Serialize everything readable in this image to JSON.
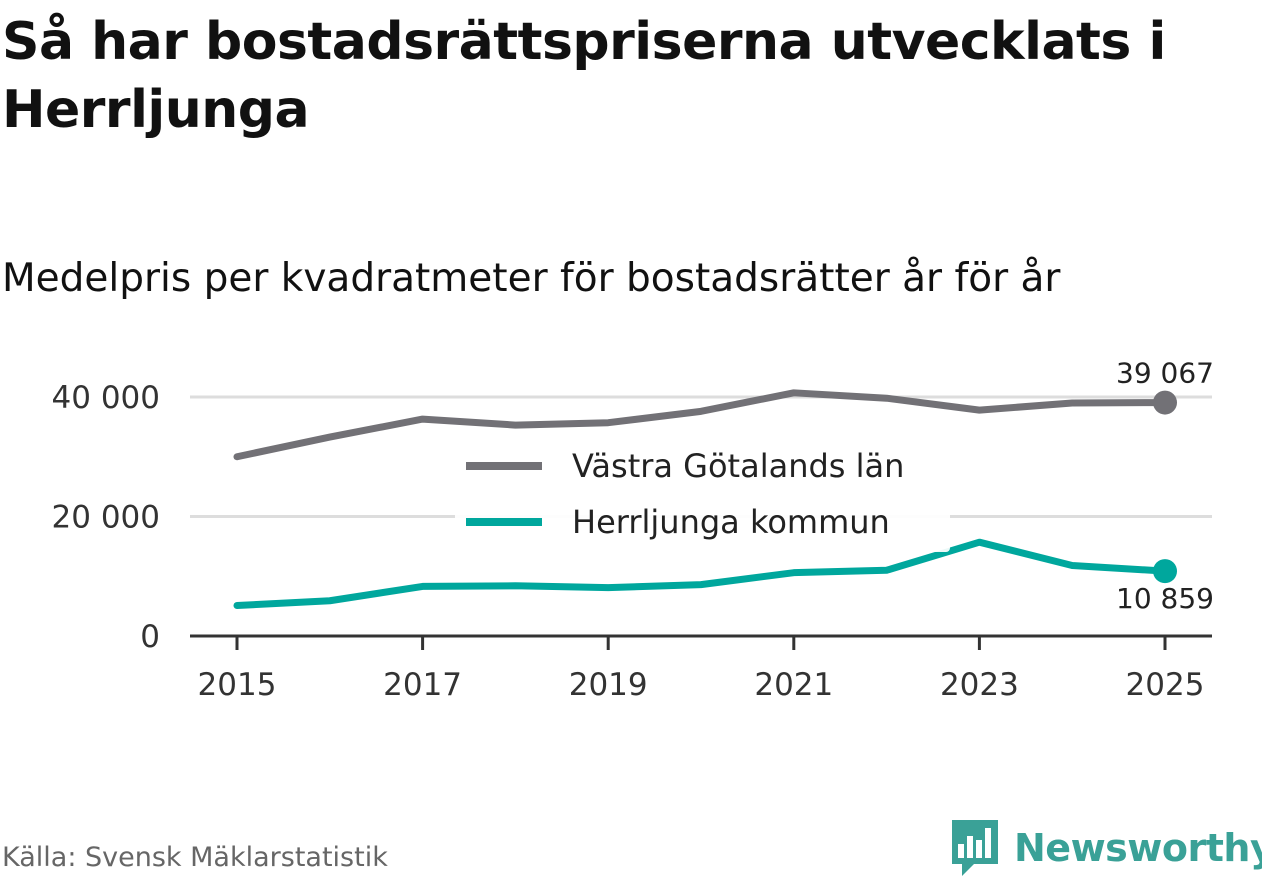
{
  "title": "Så har bostadsrättspriserna utvecklats i Herrljunga",
  "subtitle": "Medelpris per kvadratmeter för bostadsrätter år för år",
  "source": "Källa: Svensk Mäklarstatistik",
  "brand": {
    "name": "Newsworthy",
    "icon": "bar-chart-speech-bubble-icon",
    "color": "#3aa197"
  },
  "chart_data": {
    "type": "line",
    "x": [
      2015,
      2016,
      2017,
      2018,
      2019,
      2020,
      2021,
      2022,
      2023,
      2024,
      2025
    ],
    "xticks": [
      "2015",
      "2017",
      "2019",
      "2021",
      "2023",
      "2025"
    ],
    "xlim": [
      2014.75,
      2025.5
    ],
    "yticks": [
      {
        "value": 0,
        "label": "0"
      },
      {
        "value": 20000,
        "label": "20 000"
      },
      {
        "value": 40000,
        "label": "40 000"
      }
    ],
    "ylim": [
      0,
      40000
    ],
    "grid": true,
    "legend_position": "center",
    "series": [
      {
        "name": "Västra Götalands län",
        "color": "#727176",
        "values": [
          30000,
          33300,
          36300,
          35300,
          35700,
          37600,
          40700,
          39800,
          37800,
          39000,
          39067
        ],
        "end_label": "39 067",
        "end_label_position": "above"
      },
      {
        "name": "Herrljunga kommun",
        "color": "#00a79d",
        "values": [
          5100,
          5900,
          8300,
          8400,
          8100,
          8600,
          10600,
          11000,
          15700,
          11800,
          10859
        ],
        "end_label": "10 859",
        "end_label_position": "below"
      }
    ]
  }
}
